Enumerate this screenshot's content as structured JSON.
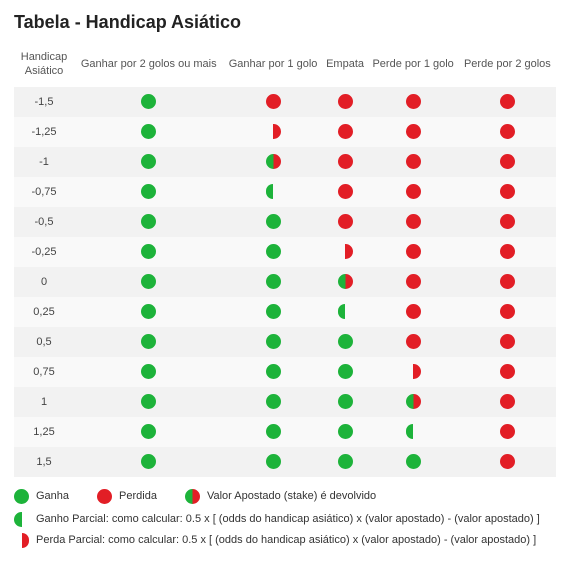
{
  "title": "Tabela - Handicap Asiático",
  "colors": {
    "green": "#1db33a",
    "red": "#e21e26",
    "row_odd_bg": "#f2f2f2",
    "row_even_bg": "#f9f9f9",
    "text": "#333333",
    "heading": "#222222"
  },
  "columns": [
    "Handicap Asiático",
    "Ganhar por 2 golos ou mais",
    "Ganhar por 1 golo",
    "Empata",
    "Perde por 1 golo",
    "Perde por 2 golos"
  ],
  "icon_types": {
    "win": {
      "shape": "full",
      "color": "green"
    },
    "loss": {
      "shape": "full",
      "color": "red"
    },
    "refund": {
      "shape": "split",
      "left": "green",
      "right": "red"
    },
    "half_win": {
      "shape": "half",
      "side": "left",
      "color": "green"
    },
    "half_loss": {
      "shape": "half",
      "side": "right",
      "color": "red"
    }
  },
  "rows": [
    {
      "handicap": "-1,5",
      "cells": [
        "win",
        "loss",
        "loss",
        "loss",
        "loss"
      ]
    },
    {
      "handicap": "-1,25",
      "cells": [
        "win",
        "half_loss",
        "loss",
        "loss",
        "loss"
      ]
    },
    {
      "handicap": "-1",
      "cells": [
        "win",
        "refund",
        "loss",
        "loss",
        "loss"
      ]
    },
    {
      "handicap": "-0,75",
      "cells": [
        "win",
        "half_win",
        "loss",
        "loss",
        "loss"
      ]
    },
    {
      "handicap": "-0,5",
      "cells": [
        "win",
        "win",
        "loss",
        "loss",
        "loss"
      ]
    },
    {
      "handicap": "-0,25",
      "cells": [
        "win",
        "win",
        "half_loss",
        "loss",
        "loss"
      ]
    },
    {
      "handicap": "0",
      "cells": [
        "win",
        "win",
        "refund",
        "loss",
        "loss"
      ]
    },
    {
      "handicap": "0,25",
      "cells": [
        "win",
        "win",
        "half_win",
        "loss",
        "loss"
      ]
    },
    {
      "handicap": "0,5",
      "cells": [
        "win",
        "win",
        "win",
        "loss",
        "loss"
      ]
    },
    {
      "handicap": "0,75",
      "cells": [
        "win",
        "win",
        "win",
        "half_loss",
        "loss"
      ]
    },
    {
      "handicap": "1",
      "cells": [
        "win",
        "win",
        "win",
        "refund",
        "loss"
      ]
    },
    {
      "handicap": "1,25",
      "cells": [
        "win",
        "win",
        "win",
        "half_win",
        "loss"
      ]
    },
    {
      "handicap": "1,5",
      "cells": [
        "win",
        "win",
        "win",
        "win",
        "loss"
      ]
    }
  ],
  "legend": {
    "win": "Ganha",
    "loss": "Perdida",
    "refund": "Valor Apostado (stake) é devolvido",
    "half_win": "Ganho Parcial: como calcular: 0.5 x [ (odds do handicap asiático) x (valor apostado) - (valor apostado) ]",
    "half_loss": "Perda Parcial: como calcular: 0.5 x [ (odds do handicap asiático) x (valor apostado) - (valor apostado) ]"
  }
}
